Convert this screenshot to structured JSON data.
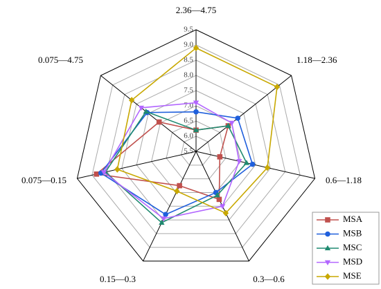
{
  "chart_data": {
    "type": "radar",
    "categories": [
      "2.36—4.75",
      "1.18—2.36",
      "0.6—1.18",
      "0.3—0.6",
      "0.15—0.3",
      "0.075—0.15",
      "0.075—4.75"
    ],
    "ylim": [
      5.5,
      9.5
    ],
    "yticks": [
      5.5,
      6.0,
      6.5,
      7.0,
      7.5,
      8.0,
      8.5,
      9.0,
      9.5
    ],
    "grid": true,
    "legend": "lower right",
    "series": [
      {
        "name": "MSA",
        "color": "#c0504d",
        "marker": "square",
        "values": [
          6.2,
          6.85,
          6.3,
          7.25,
          6.75,
          8.85,
          7.05
        ]
      },
      {
        "name": "MSB",
        "color": "#1f5fdc",
        "marker": "circle",
        "values": [
          6.8,
          7.25,
          7.4,
          7.0,
          7.8,
          8.7,
          7.55
        ]
      },
      {
        "name": "MSC",
        "color": "#1f8a70",
        "marker": "triangle",
        "values": [
          6.2,
          6.85,
          7.2,
          7.1,
          8.1,
          8.55,
          7.6
        ]
      },
      {
        "name": "MSD",
        "color": "#b266ff",
        "marker": "triangle-down",
        "values": [
          7.1,
          7.0,
          6.95,
          7.5,
          7.95,
          8.6,
          7.8
        ]
      },
      {
        "name": "MSE",
        "color": "#c8a800",
        "marker": "diamond",
        "values": [
          8.9,
          8.9,
          7.9,
          7.75,
          6.95,
          8.15,
          8.2
        ]
      }
    ]
  }
}
